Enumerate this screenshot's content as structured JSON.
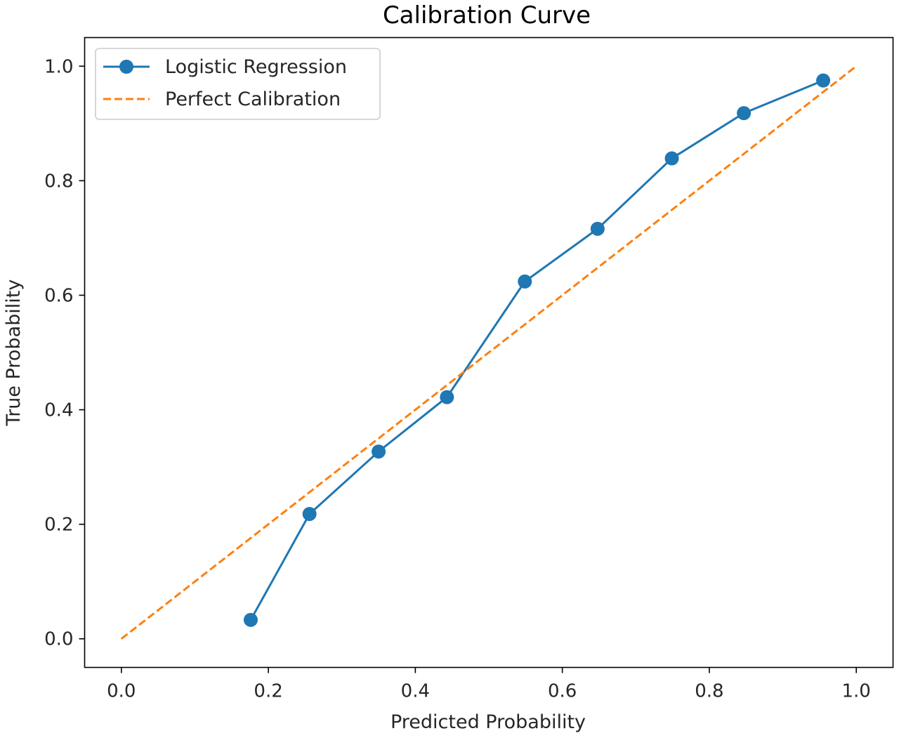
{
  "chart_data": {
    "type": "line",
    "title": "Calibration Curve",
    "xlabel": "Predicted Probability",
    "ylabel": "True Probability",
    "xlim": [
      -0.05,
      1.05
    ],
    "ylim": [
      -0.05,
      1.05
    ],
    "x_ticks": [
      0.0,
      0.2,
      0.4,
      0.6,
      0.8,
      1.0
    ],
    "y_ticks": [
      0.0,
      0.2,
      0.4,
      0.6,
      0.8,
      1.0
    ],
    "x_tick_labels": [
      "0.0",
      "0.2",
      "0.4",
      "0.6",
      "0.8",
      "1.0"
    ],
    "y_tick_labels": [
      "0.0",
      "0.2",
      "0.4",
      "0.6",
      "0.8",
      "1.0"
    ],
    "grid": false,
    "legend_position": "top-left",
    "series": [
      {
        "name": "Logistic Regression",
        "color": "#1f77b4",
        "style": "solid",
        "marker": "circle",
        "x": [
          0.176,
          0.256,
          0.35,
          0.443,
          0.549,
          0.648,
          0.749,
          0.847,
          0.955
        ],
        "y": [
          0.033,
          0.218,
          0.327,
          0.422,
          0.624,
          0.716,
          0.839,
          0.918,
          0.975
        ]
      },
      {
        "name": "Perfect Calibration",
        "color": "#ff7f0e",
        "style": "dashed",
        "marker": "none",
        "x": [
          0.0,
          1.0
        ],
        "y": [
          0.0,
          1.0
        ]
      }
    ]
  }
}
